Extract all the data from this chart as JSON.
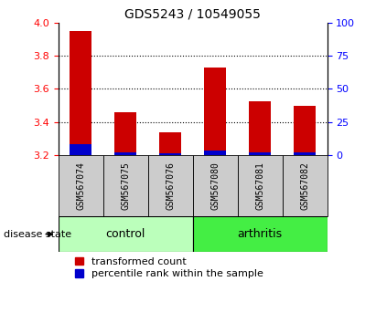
{
  "title": "GDS5243 / 10549055",
  "samples": [
    "GSM567074",
    "GSM567075",
    "GSM567076",
    "GSM567080",
    "GSM567081",
    "GSM567082"
  ],
  "red_values": [
    3.95,
    3.46,
    3.335,
    3.73,
    3.525,
    3.495
  ],
  "blue_values": [
    3.265,
    3.215,
    3.21,
    3.225,
    3.215,
    3.215
  ],
  "y_min": 3.2,
  "y_max": 4.0,
  "y_ticks_left": [
    3.2,
    3.4,
    3.6,
    3.8,
    4.0
  ],
  "y_ticks_right": [
    0,
    25,
    50,
    75,
    100
  ],
  "bar_width": 0.5,
  "red_color": "#cc0000",
  "blue_color": "#0000cc",
  "control_color": "#bbffbb",
  "arthritis_color": "#44ee44",
  "label_bg_color": "#cccccc",
  "group_label": "disease state",
  "control_label": "control",
  "arthritis_label": "arthritis",
  "legend_red": "transformed count",
  "legend_blue": "percentile rank within the sample",
  "grid_lines": [
    3.4,
    3.6,
    3.8
  ],
  "title_fontsize": 10,
  "tick_fontsize": 8,
  "sample_fontsize": 7,
  "group_fontsize": 9,
  "legend_fontsize": 8
}
